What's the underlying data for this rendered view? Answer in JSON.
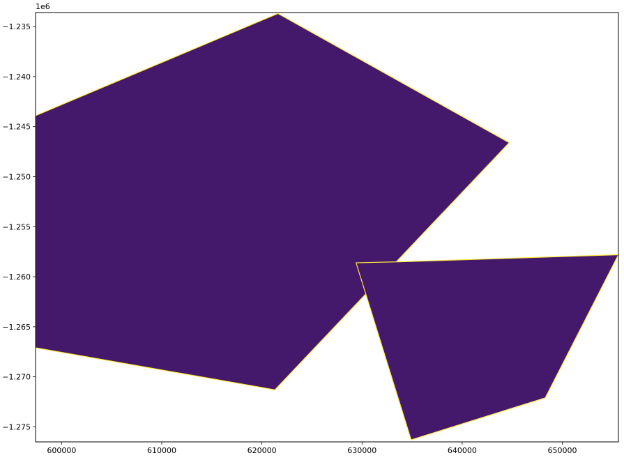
{
  "chart_data": {
    "type": "area",
    "title": "",
    "xlabel": "",
    "ylabel": "",
    "y_offset_text": "1e6",
    "xlim": [
      597400,
      655600
    ],
    "ylim": [
      -1276500,
      -1233600
    ],
    "x_ticks": [
      600000,
      610000,
      620000,
      630000,
      640000,
      650000
    ],
    "x_tick_labels": [
      "600000",
      "610000",
      "620000",
      "630000",
      "640000",
      "650000"
    ],
    "y_ticks": [
      -1235000,
      -1240000,
      -1245000,
      -1250000,
      -1255000,
      -1260000,
      -1265000,
      -1270000,
      -1275000
    ],
    "y_tick_labels": [
      "−1.235",
      "−1.240",
      "−1.245",
      "−1.250",
      "−1.255",
      "−1.260",
      "−1.265",
      "−1.270",
      "−1.275"
    ],
    "grid": false,
    "colors": {
      "raster_fill": "#44196b",
      "outline": "#ffe83a",
      "axis": "#000000",
      "background": "#ffffff"
    },
    "series": [
      {
        "points": [
          [
            597400,
            -1243900
          ],
          [
            621600,
            -1233700
          ],
          [
            644700,
            -1246600
          ],
          [
            621300,
            -1271300
          ],
          [
            597400,
            -1267100
          ]
        ]
      },
      {
        "points": [
          [
            629400,
            -1258600
          ],
          [
            634000,
            -1258500
          ],
          [
            655600,
            -1257800
          ],
          [
            648300,
            -1272100
          ],
          [
            634900,
            -1276300
          ]
        ]
      }
    ]
  }
}
